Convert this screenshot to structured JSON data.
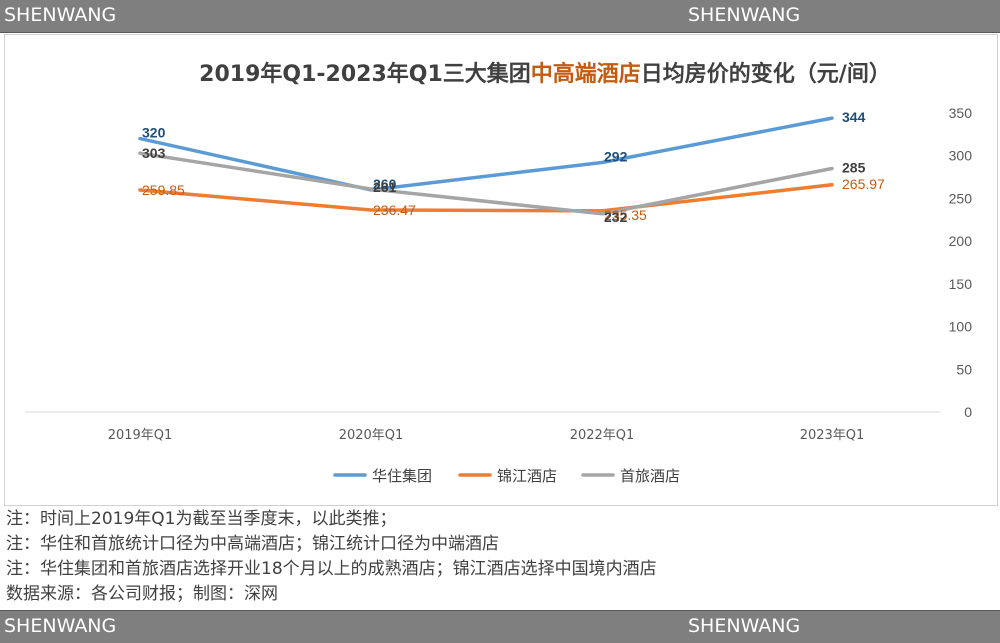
{
  "header": {
    "left_label": "SHENWANG",
    "right_label": "SHENWANG"
  },
  "footer": {
    "left_label": "SHENWANG",
    "right_label": "SHENWANG"
  },
  "chart_data": {
    "type": "line",
    "title_parts": [
      {
        "text": "2019年Q1-2023年Q1三大集团",
        "color": "#404040"
      },
      {
        "text": "中高端酒店",
        "color": "#c55a11"
      },
      {
        "text": "日均房价的变化（元/间）",
        "color": "#404040"
      }
    ],
    "categories": [
      "2019年Q1",
      "2020年Q1",
      "2022年Q1",
      "2023年Q1"
    ],
    "yticks": [
      0,
      50,
      100,
      150,
      200,
      250,
      300,
      350
    ],
    "ylim": [
      0,
      350
    ],
    "grid": false,
    "legend_position": "bottom",
    "series": [
      {
        "name": "华住集团",
        "color": "#5b9bd5",
        "label_color": "#1f4e79",
        "values": [
          320,
          260,
          292,
          344
        ],
        "labels": [
          "320",
          "260",
          "292",
          "344"
        ]
      },
      {
        "name": "锦江酒店",
        "color": "#ed7d31",
        "label_color": "#c55a11",
        "values": [
          259.85,
          236.47,
          235.35,
          265.97
        ],
        "labels": [
          "259.85",
          "236.47",
          "235.35",
          "265.97"
        ]
      },
      {
        "name": "首旅酒店",
        "color": "#a5a5a5",
        "label_color": "#404040",
        "values": [
          303,
          261,
          232,
          285
        ],
        "labels": [
          "303",
          "261",
          "232",
          "285"
        ]
      }
    ]
  },
  "notes": [
    "注：时间上2019年Q1为截至当季度末，以此类推；",
    "注：华住和首旅统计口径为中高端酒店；锦江统计口径为中端酒店",
    "注：华住集团和首旅酒店选择开业18个月以上的成熟酒店；锦江酒店选择中国境内酒店",
    "数据来源：各公司财报；制图：深网"
  ]
}
